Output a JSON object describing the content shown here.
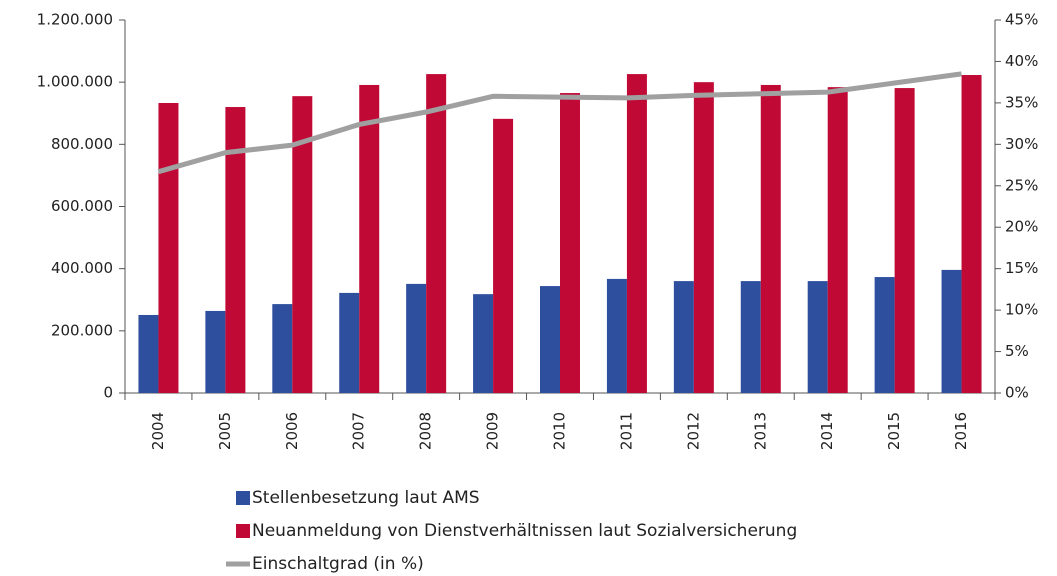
{
  "chart_data": {
    "type": "bar-line",
    "categories": [
      "2004",
      "2005",
      "2006",
      "2007",
      "2008",
      "2009",
      "2010",
      "2011",
      "2012",
      "2013",
      "2014",
      "2015",
      "2016"
    ],
    "series": [
      {
        "name": "Stellenbesetzung laut AMS",
        "color": "#2e4f9e",
        "type": "bar",
        "values": [
          251000,
          264000,
          286000,
          322000,
          351000,
          318000,
          344000,
          367000,
          360000,
          360000,
          360000,
          373000,
          396000
        ]
      },
      {
        "name": "Neuanmeldung von Dienstverhältnissen laut Sozialversicherung",
        "color": "#c00a35",
        "type": "bar",
        "values": [
          933000,
          920000,
          955000,
          991000,
          1026000,
          882000,
          965000,
          1026000,
          1000000,
          991000,
          984000,
          981000,
          1023000
        ]
      },
      {
        "name": "Einschaltgrad (in %)",
        "color": "#a0a0a0",
        "type": "line",
        "axis": "y2",
        "values": [
          26.7,
          29.0,
          29.9,
          32.4,
          33.9,
          35.8,
          35.7,
          35.6,
          35.9,
          36.1,
          36.3,
          37.4,
          38.5
        ]
      }
    ],
    "ylim": [
      0,
      1200000
    ],
    "yticks": [
      0,
      {
        "value": 200000,
        "label": "200.000"
      },
      {
        "value": 400000,
        "label": "400.000"
      },
      {
        "value": 600000,
        "label": "600.000"
      },
      {
        "value": 800000,
        "label": "800.000"
      },
      {
        "value": 1000000,
        "label": "1.000.000"
      },
      {
        "value": 1200000,
        "label": "1.200.000"
      }
    ],
    "y2lim": [
      0,
      45
    ],
    "y2ticks": [
      {
        "value": 0,
        "label": "0%"
      },
      {
        "value": 5,
        "label": "5%"
      },
      {
        "value": 10,
        "label": "10%"
      },
      {
        "value": 15,
        "label": "15%"
      },
      {
        "value": 20,
        "label": "20%"
      },
      {
        "value": 25,
        "label": "25%"
      },
      {
        "value": 30,
        "label": "30%"
      },
      {
        "value": 35,
        "label": "35%"
      },
      {
        "value": 40,
        "label": "40%"
      },
      {
        "value": 45,
        "label": "45%"
      }
    ],
    "legend": "bottom"
  }
}
